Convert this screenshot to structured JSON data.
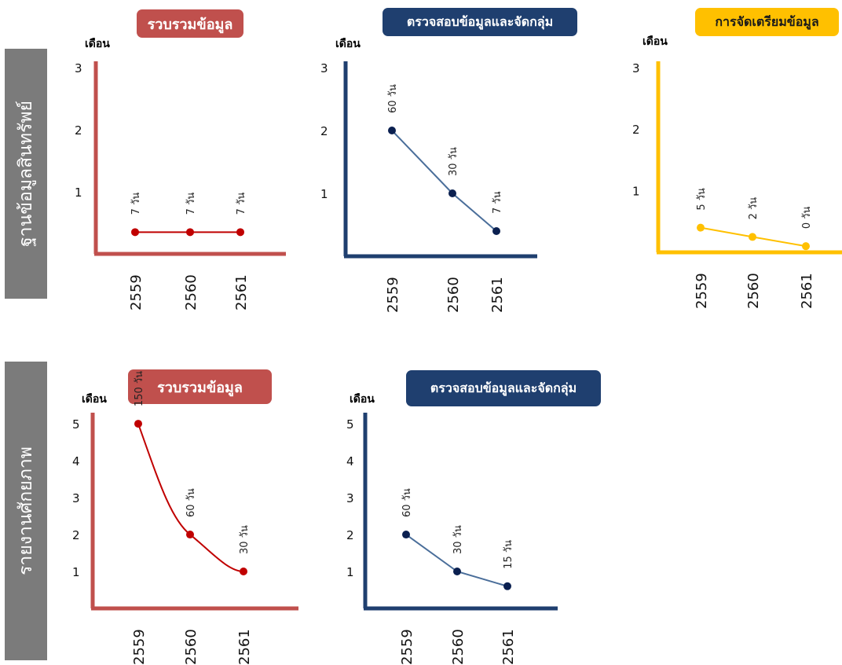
{
  "colors": {
    "red": "#c0504d",
    "redLine": "#c00000",
    "navy": "#1f3f6f",
    "navyPoint": "#0b2050",
    "yellow": "#ffc000",
    "sidebar": "#7b7b7b"
  },
  "sections": [
    {
      "title": "ฐานข้อมูลสินทรัพย์"
    },
    {
      "title": "รายงานศักยภาพ"
    }
  ],
  "chart_data": [
    {
      "type": "line",
      "section": "ฐานข้อมูลสินทรัพย์",
      "title": "รวบรวมข้อมูล",
      "ylabel": "เดือน",
      "categories": [
        "2559",
        "2560",
        "2561"
      ],
      "values": [
        0.35,
        0.35,
        0.35
      ],
      "point_labels": [
        "7 วัน",
        "7 วัน",
        "7 วัน"
      ],
      "yticks": [
        "1",
        "2",
        "3"
      ],
      "ylim": [
        0,
        3.1
      ]
    },
    {
      "type": "line",
      "section": "ฐานข้อมูลสินทรัพย์",
      "title": "ตรวจสอบข้อมูลและจัดกลุ่ม",
      "ylabel": "เดือน",
      "categories": [
        "2559",
        "2560",
        "2561"
      ],
      "values": [
        2.0,
        1.0,
        0.4
      ],
      "point_labels": [
        "60 วัน",
        "30 วัน",
        "7 วัน"
      ],
      "yticks": [
        "1",
        "2",
        "3"
      ],
      "ylim": [
        0,
        3.1
      ]
    },
    {
      "type": "line",
      "section": "ฐานข้อมูลสินทรัพย์",
      "title": "การจัดเตรียมข้อมูล",
      "ylabel": "เดือน",
      "categories": [
        "2559",
        "2560",
        "2561"
      ],
      "values": [
        0.4,
        0.25,
        0.1
      ],
      "point_labels": [
        "5 วัน",
        "2 วัน",
        "0 วัน"
      ],
      "yticks": [
        "1",
        "2",
        "3"
      ],
      "ylim": [
        0,
        3.1
      ]
    },
    {
      "type": "line",
      "section": "รายงานศักยภาพ",
      "title": "รวบรวมข้อมูล",
      "ylabel": "เดือน",
      "categories": [
        "2559",
        "2560",
        "2561"
      ],
      "values": [
        5.0,
        2.0,
        1.0
      ],
      "point_labels": [
        "150 วัน",
        "60 วัน",
        "30 วัน"
      ],
      "yticks": [
        "1",
        "2",
        "3",
        "4",
        "5"
      ],
      "ylim": [
        0,
        5.3
      ]
    },
    {
      "type": "line",
      "section": "รายงานศักยภาพ",
      "title": "ตรวจสอบข้อมูลและจัดกลุ่ม",
      "ylabel": "เดือน",
      "categories": [
        "2559",
        "2560",
        "2561"
      ],
      "values": [
        2.0,
        1.0,
        0.6
      ],
      "point_labels": [
        "60 วัน",
        "30 วัน",
        "15 วัน"
      ],
      "yticks": [
        "1",
        "2",
        "3",
        "4",
        "5"
      ],
      "ylim": [
        0,
        5.3
      ]
    }
  ]
}
